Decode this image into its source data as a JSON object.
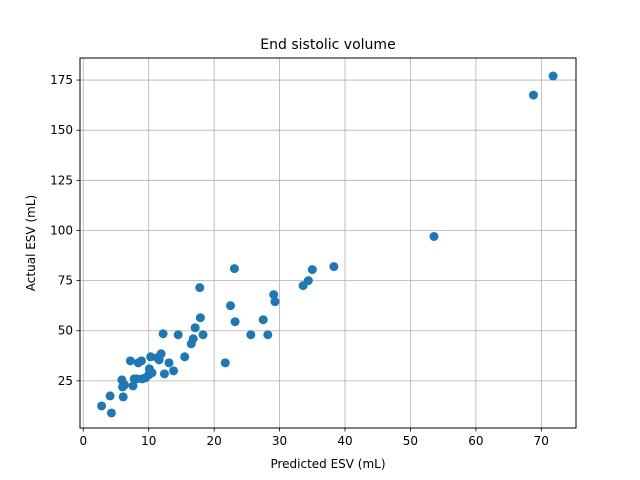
{
  "chart_data": {
    "type": "scatter",
    "title": "End sistolic volume",
    "xlabel": "Predicted ESV (mL)",
    "ylabel": "Actual ESV (mL)",
    "xlim": [
      -0.5,
      75.3
    ],
    "ylim": [
      1.5,
      186
    ],
    "xticks": [
      0,
      10,
      20,
      30,
      40,
      50,
      60,
      70
    ],
    "yticks": [
      25,
      50,
      75,
      100,
      125,
      150,
      175
    ],
    "grid": true,
    "marker_color": "#1f77b4",
    "points": [
      {
        "x": 2.8,
        "y": 12.5
      },
      {
        "x": 4.1,
        "y": 17.5
      },
      {
        "x": 4.3,
        "y": 9.0
      },
      {
        "x": 5.9,
        "y": 25.5
      },
      {
        "x": 6.0,
        "y": 22.0
      },
      {
        "x": 6.1,
        "y": 17.0
      },
      {
        "x": 6.3,
        "y": 23.0
      },
      {
        "x": 7.2,
        "y": 35.0
      },
      {
        "x": 7.6,
        "y": 22.5
      },
      {
        "x": 7.8,
        "y": 26.0
      },
      {
        "x": 8.2,
        "y": 26.0
      },
      {
        "x": 8.4,
        "y": 34.0
      },
      {
        "x": 8.9,
        "y": 35.0
      },
      {
        "x": 9.0,
        "y": 26.0
      },
      {
        "x": 9.5,
        "y": 26.5
      },
      {
        "x": 10.0,
        "y": 28.0
      },
      {
        "x": 10.1,
        "y": 31.0
      },
      {
        "x": 10.3,
        "y": 37.0
      },
      {
        "x": 10.5,
        "y": 29.0
      },
      {
        "x": 11.3,
        "y": 36.5
      },
      {
        "x": 11.6,
        "y": 35.5
      },
      {
        "x": 11.9,
        "y": 38.5
      },
      {
        "x": 12.2,
        "y": 48.5
      },
      {
        "x": 12.4,
        "y": 28.5
      },
      {
        "x": 13.1,
        "y": 34.0
      },
      {
        "x": 13.8,
        "y": 30.0
      },
      {
        "x": 14.5,
        "y": 48.0
      },
      {
        "x": 15.5,
        "y": 37.0
      },
      {
        "x": 16.5,
        "y": 43.5
      },
      {
        "x": 16.8,
        "y": 46.0
      },
      {
        "x": 17.1,
        "y": 51.5
      },
      {
        "x": 17.8,
        "y": 71.5
      },
      {
        "x": 17.9,
        "y": 56.5
      },
      {
        "x": 18.3,
        "y": 48.0
      },
      {
        "x": 21.7,
        "y": 34.0
      },
      {
        "x": 22.5,
        "y": 62.5
      },
      {
        "x": 23.1,
        "y": 81.0
      },
      {
        "x": 23.2,
        "y": 54.5
      },
      {
        "x": 25.6,
        "y": 48.0
      },
      {
        "x": 27.5,
        "y": 55.5
      },
      {
        "x": 28.2,
        "y": 48.0
      },
      {
        "x": 29.1,
        "y": 68.0
      },
      {
        "x": 29.3,
        "y": 64.5
      },
      {
        "x": 33.6,
        "y": 72.5
      },
      {
        "x": 34.4,
        "y": 75.0
      },
      {
        "x": 35.0,
        "y": 80.5
      },
      {
        "x": 38.3,
        "y": 82.0
      },
      {
        "x": 53.6,
        "y": 97.0
      },
      {
        "x": 68.8,
        "y": 167.5
      },
      {
        "x": 71.8,
        "y": 177.0
      }
    ]
  }
}
